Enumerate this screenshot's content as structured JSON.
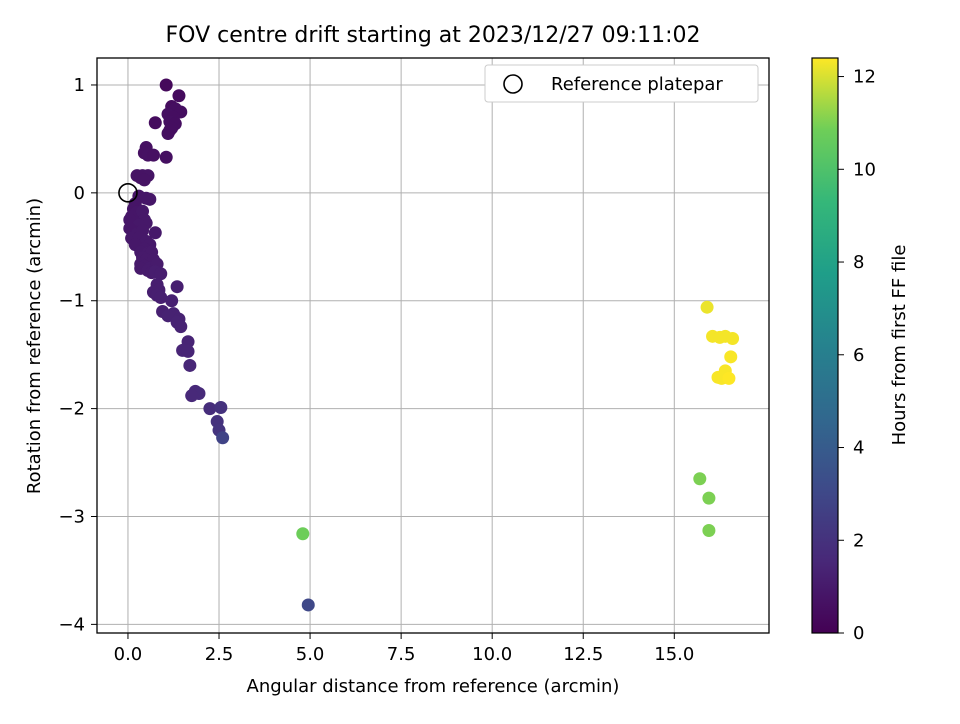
{
  "chart_data": {
    "type": "scatter",
    "title": "FOV centre drift starting at 2023/12/27 09:11:02",
    "xlabel": "Angular distance from reference (arcmin)",
    "ylabel": "Rotation from reference (arcmin)",
    "xlim": [
      -0.85,
      17.6
    ],
    "ylim": [
      -4.08,
      1.25
    ],
    "xticks": [
      0.0,
      2.5,
      5.0,
      7.5,
      10.0,
      12.5,
      15.0
    ],
    "xtick_labels": [
      "0.0",
      "2.5",
      "5.0",
      "7.5",
      "10.0",
      "12.5",
      "15.0"
    ],
    "yticks": [
      1,
      0,
      -1,
      -2,
      -3,
      -4
    ],
    "ytick_labels": [
      "1",
      "0",
      "−1",
      "−2",
      "−3",
      "−4"
    ],
    "grid": true,
    "legend": {
      "position": "top-right",
      "entries": [
        "Reference platepar"
      ]
    },
    "colorbar": {
      "label": "Hours from first FF file",
      "colormap": "viridis",
      "range": [
        0,
        12.4
      ],
      "ticks": [
        0,
        2,
        4,
        6,
        8,
        10,
        12
      ],
      "tick_labels": [
        "0",
        "2",
        "4",
        "6",
        "8",
        "10",
        "12"
      ]
    },
    "reference_point": {
      "x": 0,
      "y": 0
    },
    "series": [
      {
        "points": [
          {
            "x": 1.05,
            "y": 1.0,
            "t": 0.3
          },
          {
            "x": 1.4,
            "y": 0.9,
            "t": 0.4
          },
          {
            "x": 1.2,
            "y": 0.8,
            "t": 0.45
          },
          {
            "x": 1.3,
            "y": 0.78,
            "t": 0.5
          },
          {
            "x": 1.45,
            "y": 0.75,
            "t": 0.5
          },
          {
            "x": 1.1,
            "y": 0.73,
            "t": 0.55
          },
          {
            "x": 1.25,
            "y": 0.7,
            "t": 0.5
          },
          {
            "x": 1.15,
            "y": 0.66,
            "t": 0.55
          },
          {
            "x": 0.75,
            "y": 0.65,
            "t": 0.45
          },
          {
            "x": 1.3,
            "y": 0.64,
            "t": 0.5
          },
          {
            "x": 1.2,
            "y": 0.6,
            "t": 0.5
          },
          {
            "x": 1.1,
            "y": 0.55,
            "t": 0.55
          },
          {
            "x": 1.15,
            "y": 0.58,
            "t": 0.5
          },
          {
            "x": 0.5,
            "y": 0.42,
            "t": 0.6
          },
          {
            "x": 0.45,
            "y": 0.37,
            "t": 0.6
          },
          {
            "x": 0.55,
            "y": 0.35,
            "t": 0.65
          },
          {
            "x": 0.7,
            "y": 0.35,
            "t": 0.6
          },
          {
            "x": 1.05,
            "y": 0.33,
            "t": 0.55
          },
          {
            "x": 0.25,
            "y": 0.16,
            "t": 0.7
          },
          {
            "x": 0.4,
            "y": 0.16,
            "t": 0.75
          },
          {
            "x": 0.55,
            "y": 0.16,
            "t": 0.75
          },
          {
            "x": 0.35,
            "y": 0.14,
            "t": 0.7
          },
          {
            "x": 0.45,
            "y": 0.12,
            "t": 0.7
          },
          {
            "x": 0.3,
            "y": -0.03,
            "t": 0.8
          },
          {
            "x": 0.5,
            "y": -0.05,
            "t": 0.85
          },
          {
            "x": 0.6,
            "y": -0.06,
            "t": 0.85
          },
          {
            "x": 0.2,
            "y": -0.1,
            "t": 0.8
          },
          {
            "x": 0.15,
            "y": -0.15,
            "t": 0.8
          },
          {
            "x": 0.25,
            "y": -0.18,
            "t": 0.85
          },
          {
            "x": 0.35,
            "y": -0.2,
            "t": 0.85
          },
          {
            "x": 0.1,
            "y": -0.22,
            "t": 0.85
          },
          {
            "x": 0.4,
            "y": -0.17,
            "t": 0.9
          },
          {
            "x": 0.45,
            "y": -0.25,
            "t": 0.9
          },
          {
            "x": 0.05,
            "y": -0.25,
            "t": 0.85
          },
          {
            "x": 0.2,
            "y": -0.28,
            "t": 0.85
          },
          {
            "x": 0.5,
            "y": -0.28,
            "t": 0.9
          },
          {
            "x": 0.3,
            "y": -0.3,
            "t": 0.9
          },
          {
            "x": 0.05,
            "y": -0.33,
            "t": 0.85
          },
          {
            "x": 0.15,
            "y": -0.36,
            "t": 0.85
          },
          {
            "x": 0.25,
            "y": -0.38,
            "t": 0.9
          },
          {
            "x": 0.4,
            "y": -0.35,
            "t": 0.9
          },
          {
            "x": 0.75,
            "y": -0.37,
            "t": 0.95
          },
          {
            "x": 0.1,
            "y": -0.42,
            "t": 0.9
          },
          {
            "x": 0.3,
            "y": -0.42,
            "t": 0.9
          },
          {
            "x": 0.5,
            "y": -0.45,
            "t": 0.95
          },
          {
            "x": 0.6,
            "y": -0.48,
            "t": 0.95
          },
          {
            "x": 0.2,
            "y": -0.48,
            "t": 0.9
          },
          {
            "x": 0.45,
            "y": -0.52,
            "t": 0.95
          },
          {
            "x": 0.35,
            "y": -0.55,
            "t": 0.95
          },
          {
            "x": 0.55,
            "y": -0.56,
            "t": 1.0
          },
          {
            "x": 0.65,
            "y": -0.55,
            "t": 1.0
          },
          {
            "x": 0.4,
            "y": -0.6,
            "t": 1.0
          },
          {
            "x": 0.5,
            "y": -0.62,
            "t": 1.0
          },
          {
            "x": 0.7,
            "y": -0.62,
            "t": 1.0
          },
          {
            "x": 0.35,
            "y": -0.66,
            "t": 1.0
          },
          {
            "x": 0.45,
            "y": -0.68,
            "t": 1.0
          },
          {
            "x": 0.6,
            "y": -0.7,
            "t": 1.05
          },
          {
            "x": 0.8,
            "y": -0.66,
            "t": 1.05
          },
          {
            "x": 0.35,
            "y": -0.7,
            "t": 1.0
          },
          {
            "x": 0.55,
            "y": -0.72,
            "t": 1.05
          },
          {
            "x": 0.65,
            "y": -0.74,
            "t": 1.05
          },
          {
            "x": 0.75,
            "y": -0.73,
            "t": 1.1
          },
          {
            "x": 0.9,
            "y": -0.75,
            "t": 1.1
          },
          {
            "x": 1.35,
            "y": -0.87,
            "t": 1.2
          },
          {
            "x": 0.8,
            "y": -0.85,
            "t": 1.15
          },
          {
            "x": 0.85,
            "y": -0.9,
            "t": 1.15
          },
          {
            "x": 0.7,
            "y": -0.92,
            "t": 1.15
          },
          {
            "x": 0.8,
            "y": -0.95,
            "t": 1.2
          },
          {
            "x": 0.9,
            "y": -0.97,
            "t": 1.2
          },
          {
            "x": 1.2,
            "y": -1.0,
            "t": 1.25
          },
          {
            "x": 0.95,
            "y": -1.1,
            "t": 1.25
          },
          {
            "x": 1.25,
            "y": -1.12,
            "t": 1.3
          },
          {
            "x": 1.1,
            "y": -1.14,
            "t": 1.3
          },
          {
            "x": 1.3,
            "y": -1.15,
            "t": 1.3
          },
          {
            "x": 1.4,
            "y": -1.17,
            "t": 1.3
          },
          {
            "x": 1.35,
            "y": -1.2,
            "t": 1.35
          },
          {
            "x": 1.45,
            "y": -1.24,
            "t": 1.35
          },
          {
            "x": 1.65,
            "y": -1.38,
            "t": 1.4
          },
          {
            "x": 1.5,
            "y": -1.46,
            "t": 1.45
          },
          {
            "x": 1.65,
            "y": -1.47,
            "t": 1.45
          },
          {
            "x": 1.7,
            "y": -1.6,
            "t": 1.5
          },
          {
            "x": 1.85,
            "y": -1.84,
            "t": 1.6
          },
          {
            "x": 1.95,
            "y": -1.86,
            "t": 1.65
          },
          {
            "x": 1.75,
            "y": -1.88,
            "t": 1.6
          },
          {
            "x": 2.25,
            "y": -2.0,
            "t": 1.8
          },
          {
            "x": 2.55,
            "y": -1.99,
            "t": 2.0
          },
          {
            "x": 2.45,
            "y": -2.12,
            "t": 2.0
          },
          {
            "x": 2.5,
            "y": -2.2,
            "t": 2.1
          },
          {
            "x": 2.6,
            "y": -2.27,
            "t": 2.8
          },
          {
            "x": 4.8,
            "y": -3.16,
            "t": 10.8
          },
          {
            "x": 4.95,
            "y": -3.82,
            "t": 3.0
          },
          {
            "x": 15.9,
            "y": -1.06,
            "t": 12.2
          },
          {
            "x": 16.05,
            "y": -1.33,
            "t": 12.3
          },
          {
            "x": 16.25,
            "y": -1.34,
            "t": 12.3
          },
          {
            "x": 16.4,
            "y": -1.33,
            "t": 12.3
          },
          {
            "x": 16.6,
            "y": -1.35,
            "t": 12.3
          },
          {
            "x": 16.55,
            "y": -1.52,
            "t": 12.35
          },
          {
            "x": 16.4,
            "y": -1.65,
            "t": 12.35
          },
          {
            "x": 16.2,
            "y": -1.71,
            "t": 12.35
          },
          {
            "x": 16.3,
            "y": -1.72,
            "t": 12.35
          },
          {
            "x": 16.5,
            "y": -1.72,
            "t": 12.4
          },
          {
            "x": 15.7,
            "y": -2.65,
            "t": 11.0
          },
          {
            "x": 15.95,
            "y": -2.83,
            "t": 11.0
          },
          {
            "x": 15.95,
            "y": -3.13,
            "t": 11.0
          }
        ]
      }
    ]
  }
}
